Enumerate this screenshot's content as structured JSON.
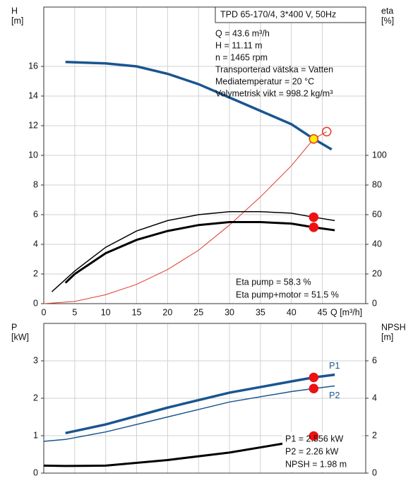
{
  "chart_data": [
    {
      "type": "line",
      "ylabel": [
        "H",
        "[m]"
      ],
      "y2label": [
        "eta",
        "[%]"
      ],
      "xlabel": "Q [m³/h]",
      "xlim": [
        0,
        52
      ],
      "xticks": [
        0,
        5,
        10,
        15,
        20,
        25,
        30,
        35,
        40,
        45
      ],
      "ylim": [
        0,
        20
      ],
      "yticks": [
        0,
        2,
        4,
        6,
        8,
        10,
        12,
        14,
        16
      ],
      "y2lim": [
        0,
        200
      ],
      "y2ticks": [
        0,
        20,
        40,
        60,
        80,
        100
      ],
      "grid": true,
      "show_xtick_labels": true,
      "info_title": "TPD 65-170/4, 3*400 V, 50Hz",
      "info": [
        "Q = 43.6 m³/h",
        "H = 11.11 m",
        "n = 1465 rpm",
        "Transporterad vätska = Vatten",
        "Mediatemperatur = 20 °C",
        "Volymetrisk vikt = 998.2 kg/m³"
      ],
      "notes": [
        "Eta pump = 58.3 %",
        "Eta pump+motor = 51.5 %"
      ],
      "series": [
        {
          "color": "#e03a2a",
          "axis": "y",
          "x": [
            0,
            5,
            10,
            15,
            20,
            25,
            30,
            35,
            40,
            43.6,
            45.7
          ],
          "values": [
            0,
            0.15,
            0.6,
            1.3,
            2.3,
            3.6,
            5.3,
            7.2,
            9.3,
            11.11,
            11.6
          ]
        },
        {
          "color": "#000000",
          "axis": "y2",
          "x": [
            1.3,
            5,
            10,
            15,
            20,
            25,
            30,
            35,
            40,
            43.6,
            47
          ],
          "values": [
            8,
            22,
            38,
            49,
            56,
            60,
            62,
            62,
            61,
            58.3,
            56
          ]
        },
        {
          "color": "#000000",
          "axis": "y2",
          "x": [
            3.5,
            5,
            10,
            15,
            20,
            25,
            30,
            35,
            40,
            43.6,
            47
          ],
          "values": [
            14,
            20,
            34,
            43,
            49,
            53,
            55,
            55,
            54,
            51.5,
            49.5
          ]
        },
        {
          "color": "#1a5590",
          "axis": "y",
          "x": [
            3.5,
            10,
            15,
            20,
            25,
            30,
            35,
            40,
            43.6,
            46.5
          ],
          "values": [
            16.3,
            16.2,
            16.0,
            15.5,
            14.8,
            13.9,
            13.0,
            12.1,
            11.11,
            10.4
          ]
        }
      ],
      "points": [
        {
          "x": 45.7,
          "y": 11.6,
          "axis": "y",
          "color": "none",
          "edge": "#e03a2a"
        },
        {
          "x": 43.6,
          "y": 58.3,
          "axis": "y2",
          "color": "#ee1111",
          "edge": "#ee1111"
        },
        {
          "x": 43.6,
          "y": 51.5,
          "axis": "y2",
          "color": "#ee1111",
          "edge": "#ee1111"
        },
        {
          "x": 43.6,
          "y": 11.11,
          "axis": "y",
          "color": "#ffee00",
          "edge": "#e03a2a"
        }
      ]
    },
    {
      "type": "line",
      "ylabel": [
        "P",
        "[kW]"
      ],
      "y2label": [
        "NPSH",
        "[m]"
      ],
      "xlim": [
        0,
        52
      ],
      "xticks": [
        0,
        5,
        10,
        15,
        20,
        25,
        30,
        35,
        40,
        45
      ],
      "ylim": [
        0,
        4
      ],
      "yticks": [
        0,
        1,
        2,
        3
      ],
      "y2lim": [
        0,
        8
      ],
      "y2ticks": [
        0,
        2,
        4,
        6
      ],
      "grid": true,
      "show_xtick_labels": false,
      "notes": [
        "P1 = 2.556 kW",
        "P2 = 2.26 kW",
        "NPSH = 1.98 m"
      ],
      "series": [
        {
          "color": "#000000",
          "axis": "y2",
          "x": [
            0,
            3.5,
            10,
            20,
            30,
            38.7
          ],
          "values": [
            0.4,
            0.38,
            0.4,
            0.7,
            1.1,
            1.58
          ]
        },
        {
          "name": "P2",
          "color": "#1a5590",
          "axis": "y",
          "x": [
            0,
            3.5,
            10,
            20,
            30,
            40,
            43.6,
            47
          ],
          "values": [
            0.85,
            0.9,
            1.1,
            1.5,
            1.9,
            2.18,
            2.26,
            2.33
          ]
        },
        {
          "name": "P1",
          "color": "#1a5590",
          "axis": "y",
          "x": [
            3.5,
            10,
            20,
            30,
            40,
            43.6,
            47
          ],
          "values": [
            1.07,
            1.3,
            1.75,
            2.15,
            2.45,
            2.556,
            2.63
          ]
        }
      ],
      "points": [
        {
          "x": 43.6,
          "y": 1.98,
          "axis": "y2",
          "color": "#ee1111",
          "edge": "#ee1111"
        },
        {
          "x": 43.6,
          "y": 2.26,
          "axis": "y",
          "color": "#ee1111",
          "edge": "#ee1111"
        },
        {
          "x": 43.6,
          "y": 2.556,
          "axis": "y",
          "color": "#ee1111",
          "edge": "#ee1111"
        }
      ]
    }
  ]
}
